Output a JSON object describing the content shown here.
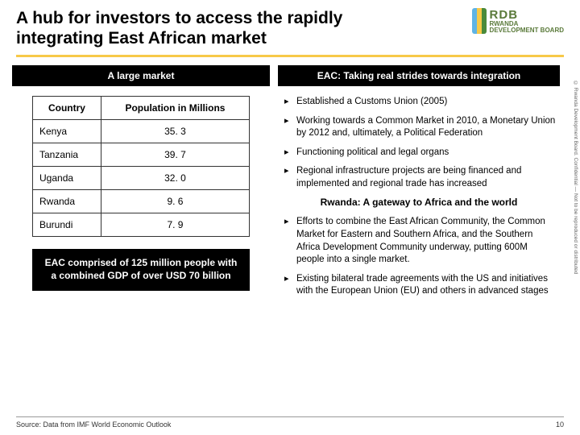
{
  "title": "A hub for investors to access the rapidly integrating East African market",
  "logo": {
    "acronym": "RDB",
    "line1": "RWANDA",
    "line2": "DEVELOPMENT BOARD",
    "flag_colors": [
      "#5fb4e5",
      "#f7c948",
      "#4a8a3a"
    ]
  },
  "left": {
    "header": "A large market",
    "table": {
      "columns": [
        "Country",
        "Population in Millions"
      ],
      "rows": [
        [
          "Kenya",
          "35. 3"
        ],
        [
          "Tanzania",
          "39. 7"
        ],
        [
          "Uganda",
          "32. 0"
        ],
        [
          "Rwanda",
          "9. 6"
        ],
        [
          "Burundi",
          "7. 9"
        ]
      ]
    },
    "summary": "EAC comprised of 125 million people with a combined GDP of over USD 70 billion"
  },
  "right": {
    "header": "EAC: Taking real strides towards integration",
    "bullets1": [
      "Established a Customs Union (2005)",
      "Working towards a Common Market in 2010, a Monetary Union by 2012 and, ultimately, a Political Federation",
      "Functioning political and legal organs",
      "Regional infrastructure projects are being financed and implemented and regional trade has increased"
    ],
    "subheader": "Rwanda: A gateway to Africa and the world",
    "bullets2": [
      "Efforts to combine the East African Community, the Common Market for Eastern and Southern Africa, and the Southern Africa Development Community underway, putting 600M people into a single market.",
      "Existing bilateral trade agreements with the US and initiatives with the European Union (EU) and others in advanced stages"
    ]
  },
  "side_text": "© Rwanda Development Board. Confidential — Not to be reproduced or distributed",
  "footer": {
    "source": "Source: Data from IMF World Economic Outlook",
    "page": "10"
  },
  "colors": {
    "accent": "#f7c948",
    "block": "#000000",
    "text": "#000000"
  }
}
